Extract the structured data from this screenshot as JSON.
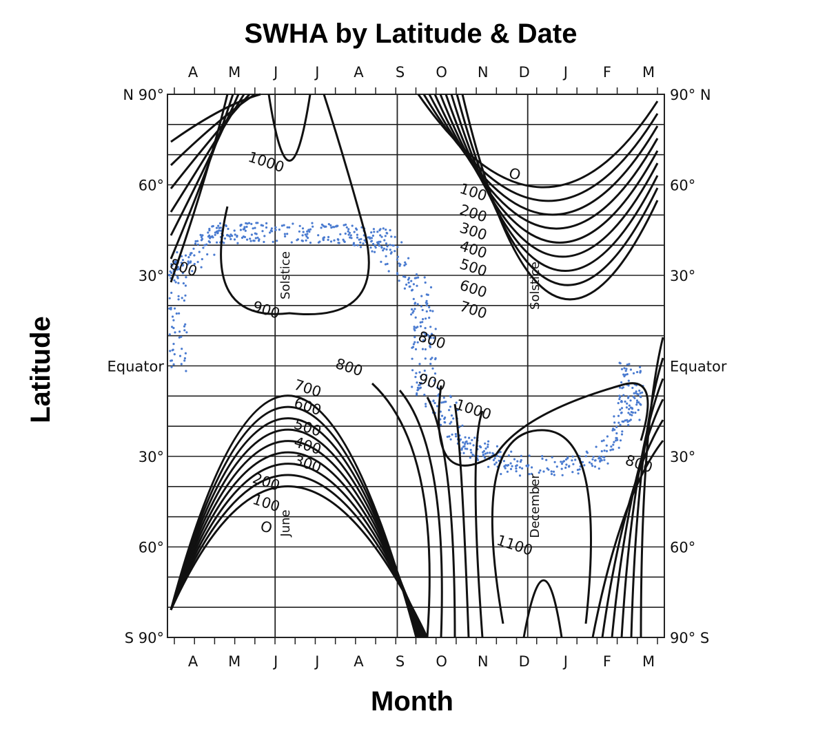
{
  "chart_data": {
    "type": "contour",
    "title": "SWHA by Latitude & Date",
    "xlabel": "Month",
    "ylabel": "Latitude",
    "x_ticks": [
      "A",
      "M",
      "J",
      "J",
      "A",
      "S",
      "O",
      "N",
      "D",
      "J",
      "F",
      "M"
    ],
    "y_ticks_left": [
      "N 90°",
      "60°",
      "30°",
      "Equator",
      "30°",
      "60°",
      "S 90°"
    ],
    "y_ticks_right": [
      "90° N",
      "60°",
      "30°",
      "Equator",
      "30°",
      "60°",
      "90° S"
    ],
    "ylim": [
      -90,
      90
    ],
    "grid": true,
    "vertical_markers": [
      "Solstice",
      "June",
      "Solstice",
      "December"
    ],
    "contour_levels": [
      0,
      100,
      200,
      300,
      400,
      500,
      600,
      700,
      800,
      900,
      1000,
      1100
    ],
    "contour_labels": [
      {
        "text": "1000",
        "month": "Jun",
        "lat": 66
      },
      {
        "text": "800",
        "month": "Apr",
        "lat": 31
      },
      {
        "text": "900",
        "month": "Jun",
        "lat": 17
      },
      {
        "text": "O",
        "month": "Dec",
        "lat": 62
      },
      {
        "text": "100",
        "month": "Nov",
        "lat": 56
      },
      {
        "text": "200",
        "month": "Nov",
        "lat": 49
      },
      {
        "text": "300",
        "month": "Nov",
        "lat": 43
      },
      {
        "text": "400",
        "month": "Nov",
        "lat": 37
      },
      {
        "text": "500",
        "month": "Nov",
        "lat": 31
      },
      {
        "text": "600",
        "month": "Nov",
        "lat": 24
      },
      {
        "text": "700",
        "month": "Nov",
        "lat": 17
      },
      {
        "text": "800",
        "month": "Oct",
        "lat": 7
      },
      {
        "text": "800",
        "month": "Aug",
        "lat": -2
      },
      {
        "text": "700",
        "month": "Jul",
        "lat": -9
      },
      {
        "text": "600",
        "month": "Jul",
        "lat": -15
      },
      {
        "text": "500",
        "month": "Jul",
        "lat": -22
      },
      {
        "text": "400",
        "month": "Jul",
        "lat": -28
      },
      {
        "text": "300",
        "month": "Jul",
        "lat": -34
      },
      {
        "text": "200",
        "month": "Jun",
        "lat": -40
      },
      {
        "text": "100",
        "month": "Jun",
        "lat": -47
      },
      {
        "text": "O",
        "month": "Jun",
        "lat": -55
      },
      {
        "text": "900",
        "month": "Oct",
        "lat": -7
      },
      {
        "text": "1000",
        "month": "Nov",
        "lat": -16
      },
      {
        "text": "800",
        "month": "Mar",
        "lat": -34
      },
      {
        "text": "1100",
        "month": "Dec",
        "lat": -61
      }
    ],
    "overlay_series": {
      "name": "",
      "type": "scatter",
      "color": "#4a7bd0",
      "trajectory": [
        {
          "month": "Apr",
          "lat": 0
        },
        {
          "month": "Apr",
          "lat": 30
        },
        {
          "month": "May",
          "lat": 44
        },
        {
          "month": "Jun",
          "lat": 44
        },
        {
          "month": "Aug",
          "lat": 44
        },
        {
          "month": "Sep",
          "lat": 42
        },
        {
          "month": "Oct",
          "lat": 22
        },
        {
          "month": "Oct",
          "lat": -5
        },
        {
          "month": "Nov",
          "lat": -25
        },
        {
          "month": "Dec",
          "lat": -33
        },
        {
          "month": "Feb",
          "lat": -33
        },
        {
          "month": "Mar",
          "lat": -15
        },
        {
          "month": "Mar",
          "lat": 0
        }
      ]
    }
  },
  "colors": {
    "contour": "#111111",
    "grid": "#222222",
    "scatter": "#4a7bd0"
  }
}
